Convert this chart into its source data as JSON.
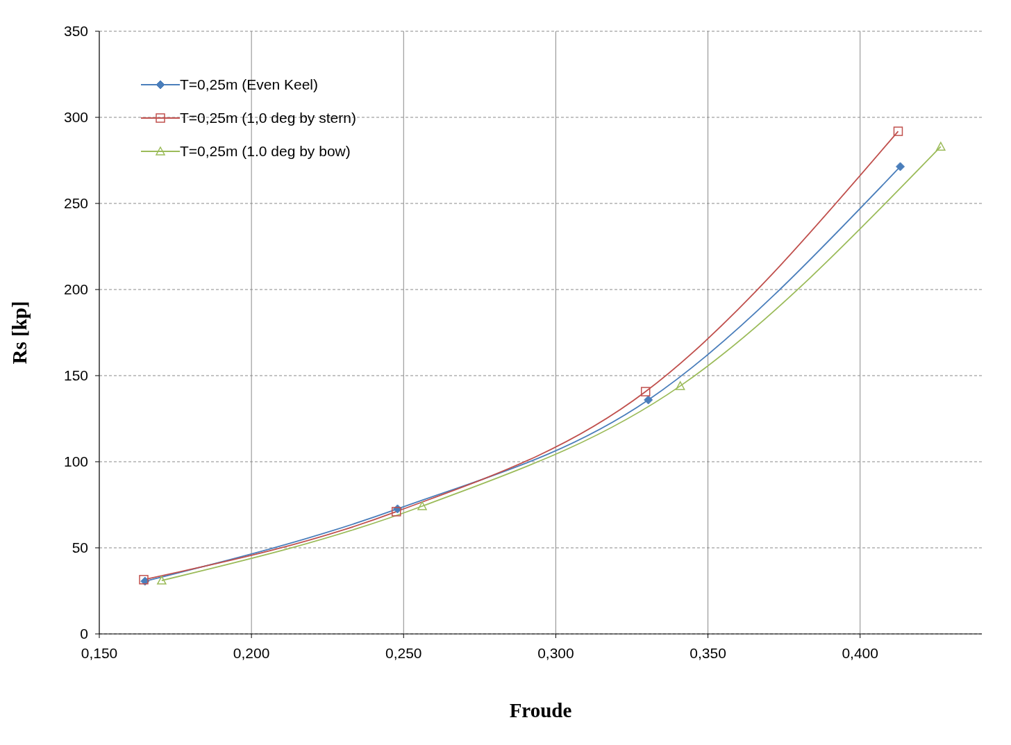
{
  "chart_data": {
    "type": "line",
    "xlabel": "Froude",
    "ylabel": "Rs [kp]",
    "xlim": [
      0.15,
      0.44
    ],
    "xticks": [
      {
        "value": 0.15,
        "label": "0,150"
      },
      {
        "value": 0.2,
        "label": "0,200"
      },
      {
        "value": 0.25,
        "label": "0,250"
      },
      {
        "value": 0.3,
        "label": "0,300"
      },
      {
        "value": 0.35,
        "label": "0,350"
      },
      {
        "value": 0.4,
        "label": "0,400"
      }
    ],
    "ylim": [
      0,
      350
    ],
    "yticks": [
      0,
      50,
      100,
      150,
      200,
      250,
      300,
      350
    ],
    "grid": true,
    "legend": "top left",
    "series": [
      {
        "name": "T=0,25m (Even Keel)",
        "color": "#4a7ebb",
        "marker": "diamond",
        "x": [
          0.165,
          0.248,
          0.3304,
          0.4132
        ],
        "values": [
          30.6,
          72.6,
          135.9,
          271.4
        ]
      },
      {
        "name": "T=0,25m (1,0 deg by stern)",
        "color": "#c0504d",
        "marker": "square",
        "x": [
          0.1646,
          0.2476,
          0.3295,
          0.4125
        ],
        "values": [
          31.5,
          71,
          140.7,
          291.9
        ]
      },
      {
        "name": "T=0,25m (1.0 deg by bow)",
        "color": "#9bbb59",
        "marker": "triangle",
        "x": [
          0.1705,
          0.2561,
          0.3409,
          0.4265
        ],
        "values": [
          31,
          74.2,
          144,
          283
        ]
      }
    ]
  }
}
